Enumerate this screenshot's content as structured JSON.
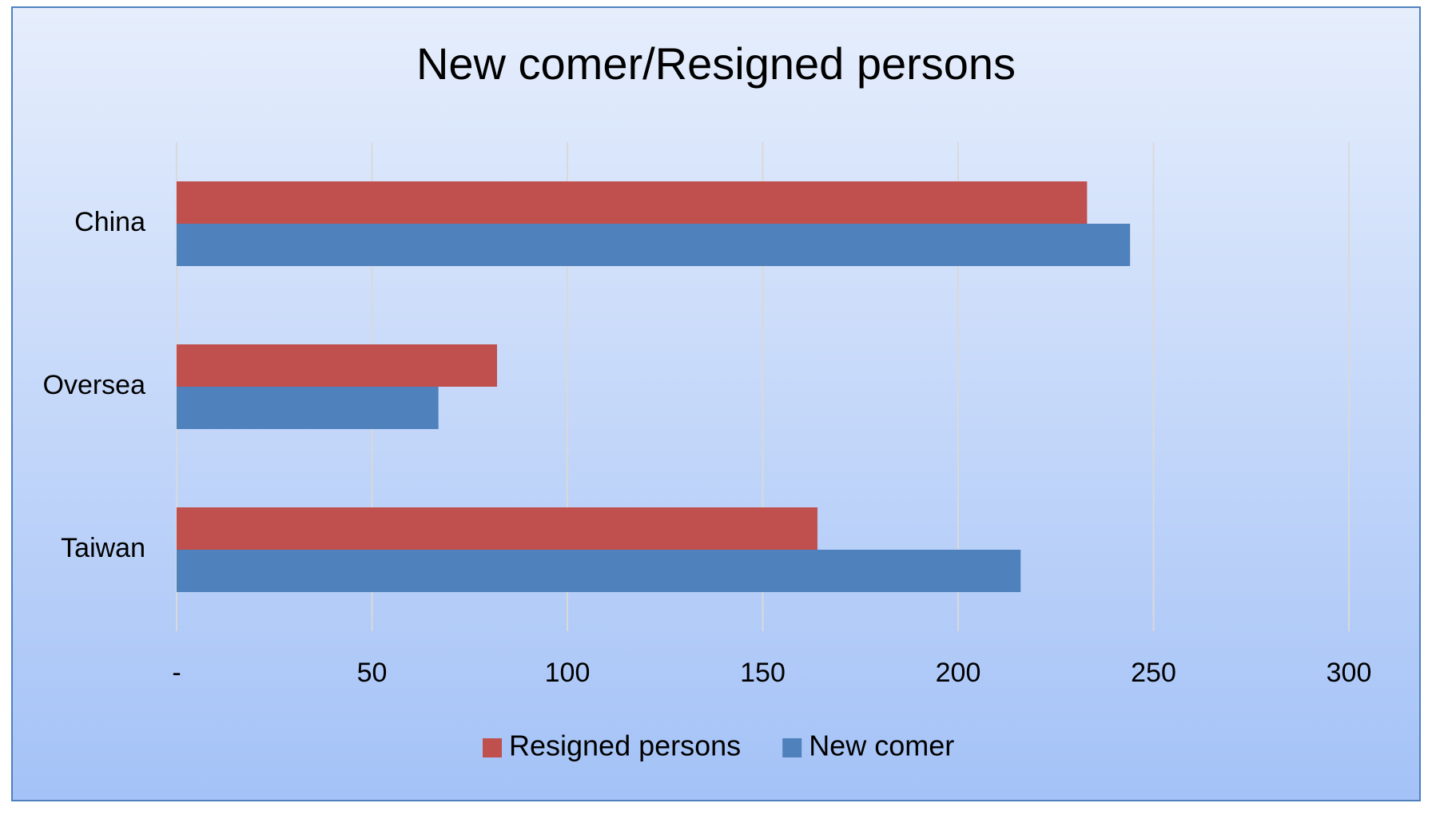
{
  "chart_data": {
    "type": "bar",
    "orientation": "horizontal",
    "title": "New comer/Resigned persons",
    "categories": [
      "China",
      "Oversea",
      "Taiwan"
    ],
    "series": [
      {
        "name": "Resigned persons",
        "color": "#c0504d",
        "values": [
          233,
          82,
          164
        ]
      },
      {
        "name": "New comer",
        "color": "#4f81bd",
        "values": [
          244,
          67,
          216
        ]
      }
    ],
    "xlim": [
      0,
      300
    ],
    "xticks": [
      {
        "value": 0,
        "label": "-"
      },
      50,
      100,
      150,
      200,
      250,
      300
    ],
    "grid": true,
    "legend": "bottom"
  }
}
